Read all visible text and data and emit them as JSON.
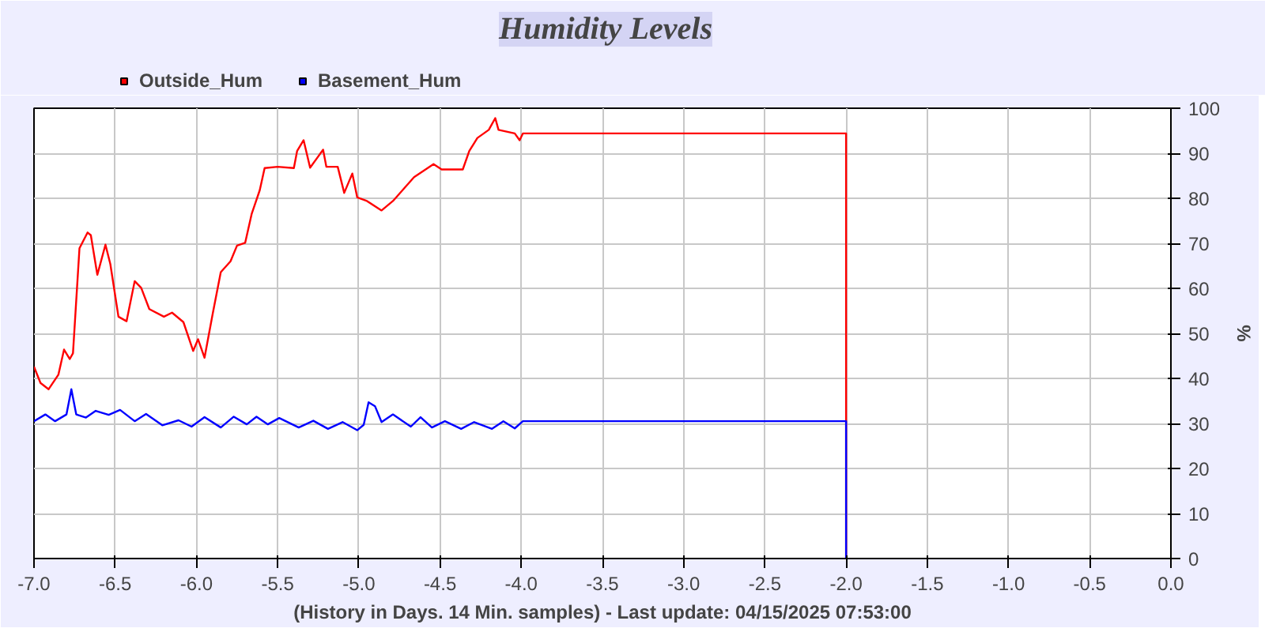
{
  "chart_data": {
    "type": "line",
    "title": "Humidity Levels",
    "xlabel": "(History in Days. 14 Min. samples) - Last update: 04/15/2025 07:53:00",
    "ylabel": "%",
    "xlim": [
      -7.0,
      0.0
    ],
    "xticks": [
      {
        "value": -7,
        "label": "-7.0"
      },
      {
        "value": -6.5,
        "label": "-6.5"
      },
      {
        "value": -6,
        "label": "-6.0"
      },
      {
        "value": -5.5,
        "label": "-5.5"
      },
      {
        "value": -5,
        "label": "-5.0"
      },
      {
        "value": -4.5,
        "label": "-4.5"
      },
      {
        "value": -4,
        "label": "-4.0"
      },
      {
        "value": -3.5,
        "label": "-3.5"
      },
      {
        "value": -3,
        "label": "-3.0"
      },
      {
        "value": -2.5,
        "label": "-2.5"
      },
      {
        "value": -2,
        "label": "-2.0"
      },
      {
        "value": -1.5,
        "label": "-1.5"
      },
      {
        "value": -1,
        "label": "-1.0"
      },
      {
        "value": -0.5,
        "label": "-0.5"
      },
      {
        "value": 0,
        "label": "0.0"
      }
    ],
    "ylim": [
      0,
      100
    ],
    "yticks": [
      0,
      10,
      20,
      30,
      40,
      50,
      60,
      70,
      80,
      90,
      100
    ],
    "grid": true,
    "legend": "top left",
    "series": [
      {
        "name": "Outside_Hum",
        "color": "#ff0000",
        "x": [
          -7.0,
          -6.96,
          -6.91,
          -6.85,
          -6.815,
          -6.78,
          -6.76,
          -6.72,
          -6.67,
          -6.65,
          -6.61,
          -6.56,
          -6.53,
          -6.48,
          -6.43,
          -6.38,
          -6.34,
          -6.29,
          -6.2,
          -6.15,
          -6.08,
          -6.02,
          -5.99,
          -5.95,
          -5.9,
          -5.85,
          -5.79,
          -5.75,
          -5.7,
          -5.66,
          -5.61,
          -5.58,
          -5.5,
          -5.4,
          -5.38,
          -5.34,
          -5.3,
          -5.26,
          -5.22,
          -5.2,
          -5.13,
          -5.09,
          -5.04,
          -5.01,
          -4.95,
          -4.86,
          -4.79,
          -4.66,
          -4.54,
          -4.49,
          -4.36,
          -4.32,
          -4.27,
          -4.2,
          -4.16,
          -4.14,
          -4.04,
          -4.01,
          -3.99,
          -2.0,
          -2.0
        ],
        "values": [
          42.6,
          39,
          37.6,
          40.8,
          46.4,
          44.3,
          45.6,
          68.9,
          72.4,
          71.8,
          63,
          69.7,
          65.4,
          53.7,
          52.7,
          61.6,
          60.1,
          55.4,
          53.7,
          54.6,
          52.5,
          46.1,
          48.7,
          44.6,
          54.3,
          63.6,
          66,
          69.5,
          70.1,
          76.5,
          81.8,
          86.7,
          87,
          86.7,
          90.5,
          92.9,
          86.8,
          88.8,
          90.8,
          87,
          87,
          81.2,
          85.5,
          80.2,
          79.4,
          77.3,
          79.4,
          84.7,
          87.6,
          86.4,
          86.4,
          90.5,
          93.4,
          95.2,
          97.8,
          95.2,
          94.4,
          92.9,
          94.4,
          94.4,
          0
        ]
      },
      {
        "name": "Basement_Hum",
        "color": "#0000ff",
        "x": [
          -7.0,
          -6.93,
          -6.87,
          -6.8,
          -6.77,
          -6.74,
          -6.68,
          -6.62,
          -6.54,
          -6.47,
          -6.38,
          -6.31,
          -6.21,
          -6.11,
          -6.03,
          -5.95,
          -5.85,
          -5.77,
          -5.69,
          -5.63,
          -5.56,
          -5.49,
          -5.37,
          -5.28,
          -5.19,
          -5.1,
          -5.01,
          -4.97,
          -4.94,
          -4.9,
          -4.86,
          -4.79,
          -4.68,
          -4.62,
          -4.55,
          -4.47,
          -4.37,
          -4.29,
          -4.18,
          -4.11,
          -4.04,
          -3.99,
          -2.0,
          -2.0
        ],
        "values": [
          30.5,
          32,
          30.5,
          32,
          37.6,
          32,
          31.3,
          32.8,
          31.9,
          33,
          30.5,
          32.1,
          29.6,
          30.7,
          29.3,
          31.4,
          29.1,
          31.5,
          29.8,
          31.5,
          29.8,
          31.2,
          29.1,
          30.6,
          28.8,
          30.3,
          28.5,
          29.7,
          34.7,
          33.8,
          30.3,
          32,
          29.3,
          31.4,
          29.1,
          30.5,
          28.8,
          30.3,
          28.8,
          30.5,
          28.9,
          30.5,
          30.5,
          0
        ]
      }
    ]
  }
}
